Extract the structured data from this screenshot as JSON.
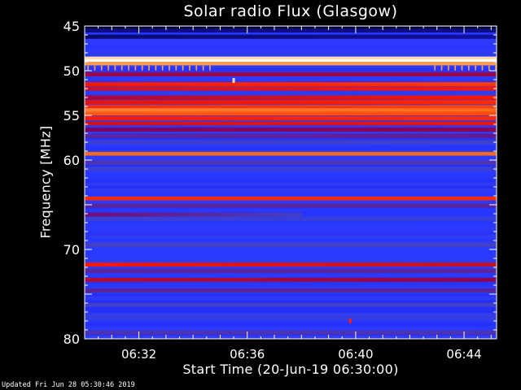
{
  "chart_data": {
    "type": "heatmap",
    "title": "Solar radio Flux (Glasgow)",
    "xlabel": "Start Time (20-Jun-19 06:30:00)",
    "ylabel": "Frequency [MHz]",
    "x_range": [
      "06:30:00",
      "06:45:12"
    ],
    "x_tick_labels": [
      "06:32",
      "06:36",
      "06:40",
      "06:44"
    ],
    "x_tick_minutes": [
      2,
      6,
      10,
      14
    ],
    "x_range_minutes": [
      0,
      15.2
    ],
    "y_range": [
      45,
      80
    ],
    "y_inverted": true,
    "y_tick_labels": [
      "45",
      "50",
      "55",
      "60",
      "70",
      "80"
    ],
    "y_tick_values": [
      45,
      50,
      55,
      60,
      70,
      80
    ],
    "colormap": [
      "#000000",
      "#0a0a6e",
      "#1a1ae0",
      "#2a3aff",
      "#4040c8",
      "#800060",
      "#c0102a",
      "#ff1a00",
      "#ff6a1a",
      "#ffd090",
      "#ffffff"
    ],
    "intensity_scale": [
      0,
      1
    ],
    "baseline_intensity": 0.3,
    "horizontal_features": [
      {
        "freq_mhz": 45.3,
        "intensity": 0.02,
        "start_min": 0,
        "end_min": 15.2,
        "end_intensity": 0.02
      },
      {
        "freq_mhz": 45.5,
        "intensity": 0.12,
        "start_min": 0,
        "end_min": 15.2,
        "end_intensity": 0.12
      },
      {
        "freq_mhz": 46.2,
        "intensity": 0.1,
        "start_min": 0,
        "end_min": 15.2,
        "end_intensity": 0.14
      },
      {
        "freq_mhz": 48.6,
        "intensity": 0.92,
        "start_min": 0,
        "end_min": 15.2,
        "end_intensity": 0.92
      },
      {
        "freq_mhz": 48.9,
        "intensity": 1.0,
        "start_min": 0,
        "end_min": 15.2,
        "end_intensity": 1.0
      },
      {
        "freq_mhz": 49.2,
        "intensity": 0.85,
        "start_min": 0,
        "end_min": 15.2,
        "end_intensity": 0.85
      },
      {
        "freq_mhz": 50.4,
        "intensity": 0.55,
        "start_min": 0,
        "end_min": 15.2,
        "end_intensity": 0.55
      },
      {
        "freq_mhz": 51.5,
        "intensity": 0.68,
        "start_min": 0,
        "end_min": 15.2,
        "end_intensity": 0.74
      },
      {
        "freq_mhz": 52.0,
        "intensity": 0.62,
        "start_min": 0,
        "end_min": 15.2,
        "end_intensity": 0.7
      },
      {
        "freq_mhz": 53.0,
        "intensity": 0.55,
        "start_min": 0,
        "end_min": 15.2,
        "end_intensity": 0.7
      },
      {
        "freq_mhz": 53.5,
        "intensity": 0.65,
        "start_min": 0,
        "end_min": 15.2,
        "end_intensity": 0.72
      },
      {
        "freq_mhz": 54.0,
        "intensity": 0.72,
        "start_min": 0,
        "end_min": 15.2,
        "end_intensity": 0.75
      },
      {
        "freq_mhz": 54.4,
        "intensity": 0.82,
        "start_min": 0,
        "end_min": 15.2,
        "end_intensity": 0.8
      },
      {
        "freq_mhz": 54.8,
        "intensity": 0.78,
        "start_min": 0,
        "end_min": 15.2,
        "end_intensity": 0.76
      },
      {
        "freq_mhz": 55.3,
        "intensity": 0.7,
        "start_min": 0,
        "end_min": 15.2,
        "end_intensity": 0.72
      },
      {
        "freq_mhz": 55.9,
        "intensity": 0.62,
        "start_min": 0,
        "end_min": 15.2,
        "end_intensity": 0.66
      },
      {
        "freq_mhz": 56.6,
        "intensity": 0.5,
        "start_min": 0,
        "end_min": 15.2,
        "end_intensity": 0.52
      },
      {
        "freq_mhz": 57.3,
        "intensity": 0.44,
        "start_min": 0,
        "end_min": 15.2,
        "end_intensity": 0.46
      },
      {
        "freq_mhz": 58.0,
        "intensity": 0.38,
        "start_min": 0,
        "end_min": 15.2,
        "end_intensity": 0.4
      },
      {
        "freq_mhz": 59.3,
        "intensity": 0.8,
        "start_min": 0,
        "end_min": 15.2,
        "end_intensity": 0.8
      },
      {
        "freq_mhz": 60.3,
        "intensity": 0.42,
        "start_min": 0,
        "end_min": 15.2,
        "end_intensity": 0.42
      },
      {
        "freq_mhz": 61.0,
        "intensity": 0.38,
        "start_min": 0,
        "end_min": 15.2,
        "end_intensity": 0.38
      },
      {
        "freq_mhz": 63.4,
        "intensity": 0.32,
        "start_min": 0,
        "end_min": 15.2,
        "end_intensity": 0.32
      },
      {
        "freq_mhz": 64.3,
        "intensity": 0.72,
        "start_min": 0,
        "end_min": 15.2,
        "end_intensity": 0.72
      },
      {
        "freq_mhz": 65.1,
        "intensity": 0.44,
        "start_min": 0,
        "end_min": 15.2,
        "end_intensity": 0.44
      },
      {
        "freq_mhz": 66.1,
        "intensity": 0.48,
        "start_min": 0,
        "end_min": 8,
        "end_intensity": 0.4
      },
      {
        "freq_mhz": 66.6,
        "intensity": 0.38,
        "start_min": 0,
        "end_min": 15.2,
        "end_intensity": 0.36
      },
      {
        "freq_mhz": 69.5,
        "intensity": 0.4,
        "start_min": 0,
        "end_min": 15.2,
        "end_intensity": 0.4
      },
      {
        "freq_mhz": 71.7,
        "intensity": 0.68,
        "start_min": 0,
        "end_min": 15.2,
        "end_intensity": 0.6
      },
      {
        "freq_mhz": 72.4,
        "intensity": 0.44,
        "start_min": 0,
        "end_min": 15.2,
        "end_intensity": 0.44
      },
      {
        "freq_mhz": 73.4,
        "intensity": 0.58,
        "start_min": 0,
        "end_min": 15.2,
        "end_intensity": 0.52
      },
      {
        "freq_mhz": 74.6,
        "intensity": 0.44,
        "start_min": 0,
        "end_min": 15.2,
        "end_intensity": 0.44
      },
      {
        "freq_mhz": 76.2,
        "intensity": 0.4,
        "start_min": 0,
        "end_min": 15.2,
        "end_intensity": 0.4
      },
      {
        "freq_mhz": 77.6,
        "intensity": 0.36,
        "start_min": 0,
        "end_min": 15.2,
        "end_intensity": 0.36
      },
      {
        "freq_mhz": 79.3,
        "intensity": 0.42,
        "start_min": 0,
        "end_min": 15.2,
        "end_intensity": 0.42
      }
    ],
    "interference_dashes": {
      "freq_mhz": 49.7,
      "intensity": 0.85,
      "segments_min": [
        [
          0,
          4.7
        ],
        [
          12.8,
          15.2
        ]
      ],
      "period_min": 0.25
    },
    "point_features": [
      {
        "time_min": 5.5,
        "freq_mhz": 51.1,
        "intensity": 0.92
      },
      {
        "time_min": 9.8,
        "freq_mhz": 78.0,
        "intensity": 0.7
      }
    ],
    "grid": false
  },
  "footer": {
    "updated_text": "Updated Fri Jun 28 05:30:46 2019"
  },
  "colors": {
    "background": "#000000",
    "axis": "#ffffff",
    "text": "#ffffff"
  }
}
